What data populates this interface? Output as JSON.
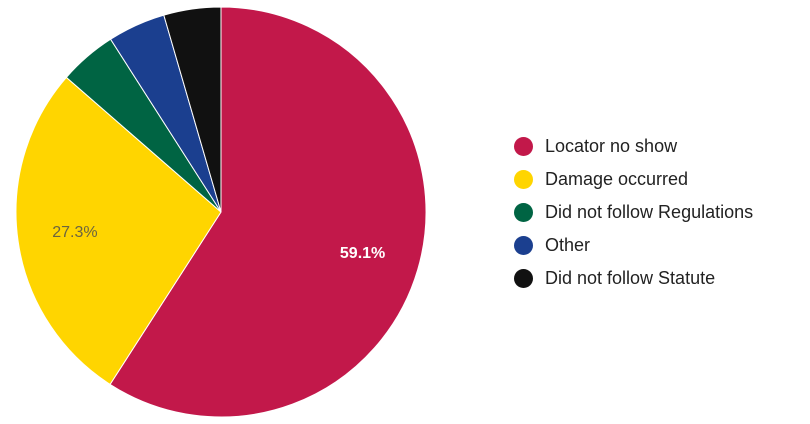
{
  "chart_data": {
    "type": "pie",
    "start_angle_deg": 0,
    "direction": "clockwise",
    "slices": [
      {
        "label": "Locator no show",
        "value": 59.1,
        "color": "#C2184A",
        "label_text": "59.1%",
        "label_color": "#ffffff"
      },
      {
        "label": "Damage occurred",
        "value": 27.3,
        "color": "#FFD500",
        "label_text": "27.3%",
        "label_color": "#6b6440"
      },
      {
        "label": "Did not follow Regulations",
        "value": 4.55,
        "color": "#006443",
        "label_text": "",
        "label_color": "#ffffff"
      },
      {
        "label": "Other",
        "value": 4.55,
        "color": "#1B3F8F",
        "label_text": "",
        "label_color": "#ffffff"
      },
      {
        "label": "Did not follow Statute",
        "value": 4.5,
        "color": "#111111",
        "label_text": "",
        "label_color": "#ffffff"
      }
    ],
    "legend_position": "right"
  }
}
